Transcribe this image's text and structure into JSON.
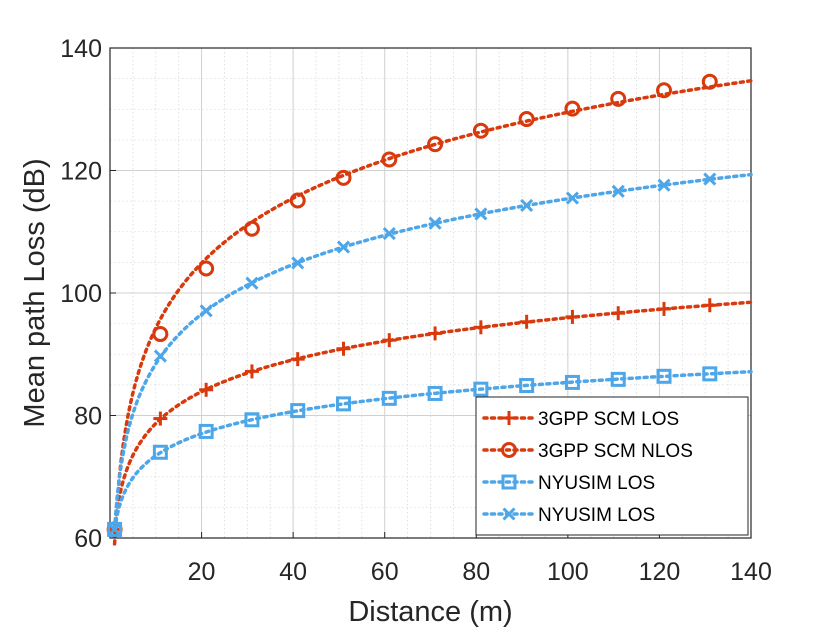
{
  "chart_data": {
    "type": "line",
    "title": "",
    "xlabel": "Distance (m)",
    "ylabel": "Mean path Loss (dB)",
    "xlim": [
      0,
      140
    ],
    "ylim": [
      60,
      140
    ],
    "xticks": [
      20,
      40,
      60,
      80,
      100,
      120,
      140
    ],
    "yticks": [
      60,
      80,
      100,
      120,
      140
    ],
    "grid": true,
    "minor_grid": true,
    "legend_position": "bottom-right",
    "series": [
      {
        "name": "3GPP SCM LOS",
        "color": "#d93a0d",
        "marker": "plus",
        "x": [
          1,
          11,
          21,
          31,
          41,
          51,
          61,
          71,
          81,
          91,
          101,
          111,
          121,
          131,
          140
        ],
        "y": [
          61.4,
          79.5,
          84.2,
          87.2,
          89.2,
          90.9,
          92.3,
          93.4,
          94.4,
          95.3,
          96.1,
          96.7,
          97.4,
          98.0,
          98.4
        ]
      },
      {
        "name": "3GPP SCM NLOS",
        "color": "#d93a0d",
        "marker": "circle",
        "x": [
          1,
          11,
          21,
          31,
          41,
          51,
          61,
          71,
          81,
          91,
          101,
          111,
          121,
          131,
          140
        ],
        "y": [
          61.4,
          93.3,
          104.0,
          110.5,
          115.1,
          118.8,
          121.8,
          124.3,
          126.5,
          128.4,
          130.1,
          131.7,
          133.1,
          134.5,
          135.6
        ]
      },
      {
        "name": "NYUSIM LOS",
        "color": "#4da6e8",
        "marker": "square",
        "x": [
          1,
          11,
          21,
          31,
          41,
          51,
          61,
          71,
          81,
          91,
          101,
          111,
          121,
          131,
          140
        ],
        "y": [
          61.4,
          74.0,
          77.4,
          79.3,
          80.8,
          81.9,
          82.8,
          83.6,
          84.3,
          84.9,
          85.4,
          85.9,
          86.4,
          86.8,
          87.2
        ]
      },
      {
        "name": "NYUSIM LOS",
        "color": "#4da6e8",
        "marker": "x",
        "x": [
          1,
          11,
          21,
          31,
          41,
          51,
          61,
          71,
          81,
          91,
          101,
          111,
          121,
          131,
          140
        ],
        "y": [
          61.4,
          89.7,
          97.1,
          101.6,
          104.9,
          107.5,
          109.7,
          111.4,
          112.9,
          114.3,
          115.5,
          116.6,
          117.6,
          118.6,
          119.3
        ]
      }
    ]
  }
}
